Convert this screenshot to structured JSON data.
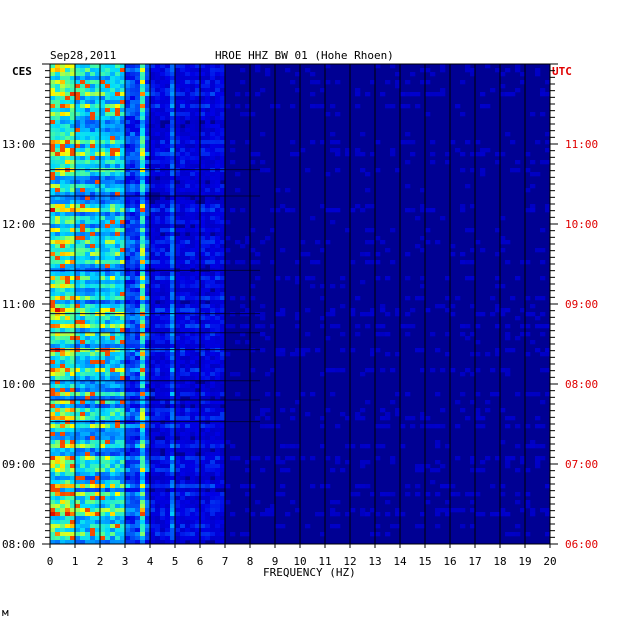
{
  "header": {
    "date": "Sep28,2011",
    "station": "HROE HHZ BW 01 (Hohe Rhoen)",
    "left_zone": "CES",
    "right_zone": "UTC"
  },
  "footer_mark": "м",
  "colors": {
    "background": "#000093",
    "low": "#0000c8",
    "mid": "#00c8ff",
    "high": "#ffff00",
    "peak": "#ff2000",
    "utc_label": "#e00000",
    "grid": "#000000"
  },
  "chart_data": {
    "type": "heatmap",
    "title": "HROE HHZ BW 01 (Hohe Rhoen)",
    "xlabel": "FREQUENCY (HZ)",
    "xlim": [
      0,
      20
    ],
    "x_ticks": [
      "0",
      "1",
      "2",
      "3",
      "4",
      "5",
      "6",
      "7",
      "8",
      "9",
      "10",
      "11",
      "12",
      "13",
      "14",
      "15",
      "16",
      "17",
      "18",
      "19",
      "20"
    ],
    "y_left_label": "CES",
    "y_left_ticks": [
      "13:00",
      "12:00",
      "11:00",
      "10:00",
      "09:00",
      "08:00"
    ],
    "y_right_label": "UTC",
    "y_right_ticks": [
      "11:00",
      "10:00",
      "09:00",
      "08:00",
      "07:00",
      "06:00"
    ],
    "time_range_ces": [
      "08:00",
      "14:00"
    ],
    "dominant_band_hz": [
      0,
      3
    ],
    "line_hz": [
      3.7,
      4.9
    ],
    "grid": "vertical at each 1 Hz"
  }
}
